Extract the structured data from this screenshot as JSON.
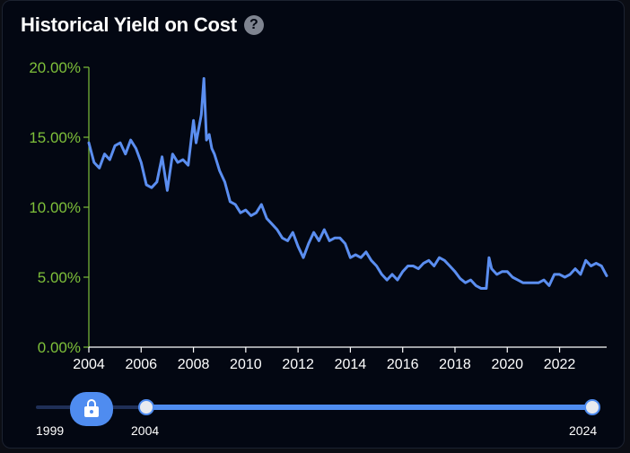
{
  "header": {
    "title": "Historical Yield on Cost",
    "help_glyph": "?",
    "help_icon": "question-circle-icon"
  },
  "colors": {
    "line": "#5b8ef0",
    "y_axis": "#7ec03a",
    "x_axis": "#ffffff",
    "accent": "#4f8cf0",
    "background": "#030712"
  },
  "chart_data": {
    "type": "line",
    "title": "Historical Yield on Cost",
    "xlabel": "",
    "ylabel": "",
    "xlim": [
      2004,
      2023.8
    ],
    "ylim": [
      0,
      20
    ],
    "x_ticks": [
      2004,
      2006,
      2008,
      2010,
      2012,
      2014,
      2016,
      2018,
      2020,
      2022
    ],
    "x_tick_labels": [
      "2004",
      "2006",
      "2008",
      "2010",
      "2012",
      "2014",
      "2016",
      "2018",
      "2020",
      "2022"
    ],
    "y_ticks": [
      0,
      5,
      10,
      15,
      20
    ],
    "y_tick_labels": [
      "0.00%",
      "5.00%",
      "10.00%",
      "15.00%",
      "20.00%"
    ],
    "grid": false,
    "series": [
      {
        "name": "",
        "x": [
          2004.0,
          2004.2,
          2004.4,
          2004.6,
          2004.8,
          2005.0,
          2005.2,
          2005.4,
          2005.6,
          2005.8,
          2006.0,
          2006.2,
          2006.4,
          2006.6,
          2006.8,
          2007.0,
          2007.2,
          2007.4,
          2007.6,
          2007.8,
          2008.0,
          2008.1,
          2008.3,
          2008.4,
          2008.5,
          2008.6,
          2008.7,
          2008.8,
          2009.0,
          2009.2,
          2009.4,
          2009.6,
          2009.8,
          2010.0,
          2010.2,
          2010.4,
          2010.6,
          2010.8,
          2011.0,
          2011.2,
          2011.4,
          2011.6,
          2011.8,
          2012.0,
          2012.2,
          2012.4,
          2012.6,
          2012.8,
          2013.0,
          2013.2,
          2013.4,
          2013.6,
          2013.8,
          2014.0,
          2014.2,
          2014.4,
          2014.6,
          2014.8,
          2015.0,
          2015.2,
          2015.4,
          2015.6,
          2015.8,
          2016.0,
          2016.2,
          2016.4,
          2016.6,
          2016.8,
          2017.0,
          2017.2,
          2017.4,
          2017.6,
          2017.8,
          2018.0,
          2018.2,
          2018.4,
          2018.6,
          2018.8,
          2019.0,
          2019.2,
          2019.3,
          2019.4,
          2019.6,
          2019.8,
          2020.0,
          2020.2,
          2020.4,
          2020.6,
          2020.8,
          2021.0,
          2021.2,
          2021.4,
          2021.6,
          2021.8,
          2022.0,
          2022.2,
          2022.4,
          2022.6,
          2022.8,
          2023.0,
          2023.2,
          2023.4,
          2023.6,
          2023.8
        ],
        "y": [
          14.6,
          13.2,
          12.8,
          13.8,
          13.4,
          14.4,
          14.6,
          13.8,
          14.8,
          14.2,
          13.2,
          11.6,
          11.4,
          11.8,
          13.6,
          11.2,
          13.8,
          13.2,
          13.4,
          13.0,
          16.2,
          14.6,
          16.6,
          19.2,
          14.8,
          15.2,
          14.2,
          13.8,
          12.6,
          11.8,
          10.4,
          10.2,
          9.6,
          9.8,
          9.4,
          9.6,
          10.2,
          9.2,
          8.8,
          8.4,
          7.8,
          7.6,
          8.2,
          7.2,
          6.4,
          7.4,
          8.2,
          7.6,
          8.4,
          7.6,
          7.8,
          7.8,
          7.4,
          6.4,
          6.6,
          6.4,
          6.8,
          6.2,
          5.8,
          5.2,
          4.8,
          5.2,
          4.8,
          5.4,
          5.8,
          5.8,
          5.6,
          6.0,
          6.2,
          5.8,
          6.4,
          6.2,
          5.8,
          5.4,
          4.9,
          4.6,
          4.8,
          4.4,
          4.2,
          4.2,
          6.4,
          5.6,
          5.2,
          5.4,
          5.4,
          5.0,
          4.8,
          4.6,
          4.6,
          4.6,
          4.6,
          4.8,
          4.4,
          5.2,
          5.2,
          5.0,
          5.2,
          5.6,
          5.2,
          6.2,
          5.8,
          6.0,
          5.8,
          5.1
        ]
      }
    ]
  },
  "range_slider": {
    "min_label": "1999",
    "start_label": "2004",
    "end_label": "2024",
    "min_year": 1999,
    "start_year": 2004,
    "end_year": 2024,
    "lock_icon": "lock-icon"
  }
}
